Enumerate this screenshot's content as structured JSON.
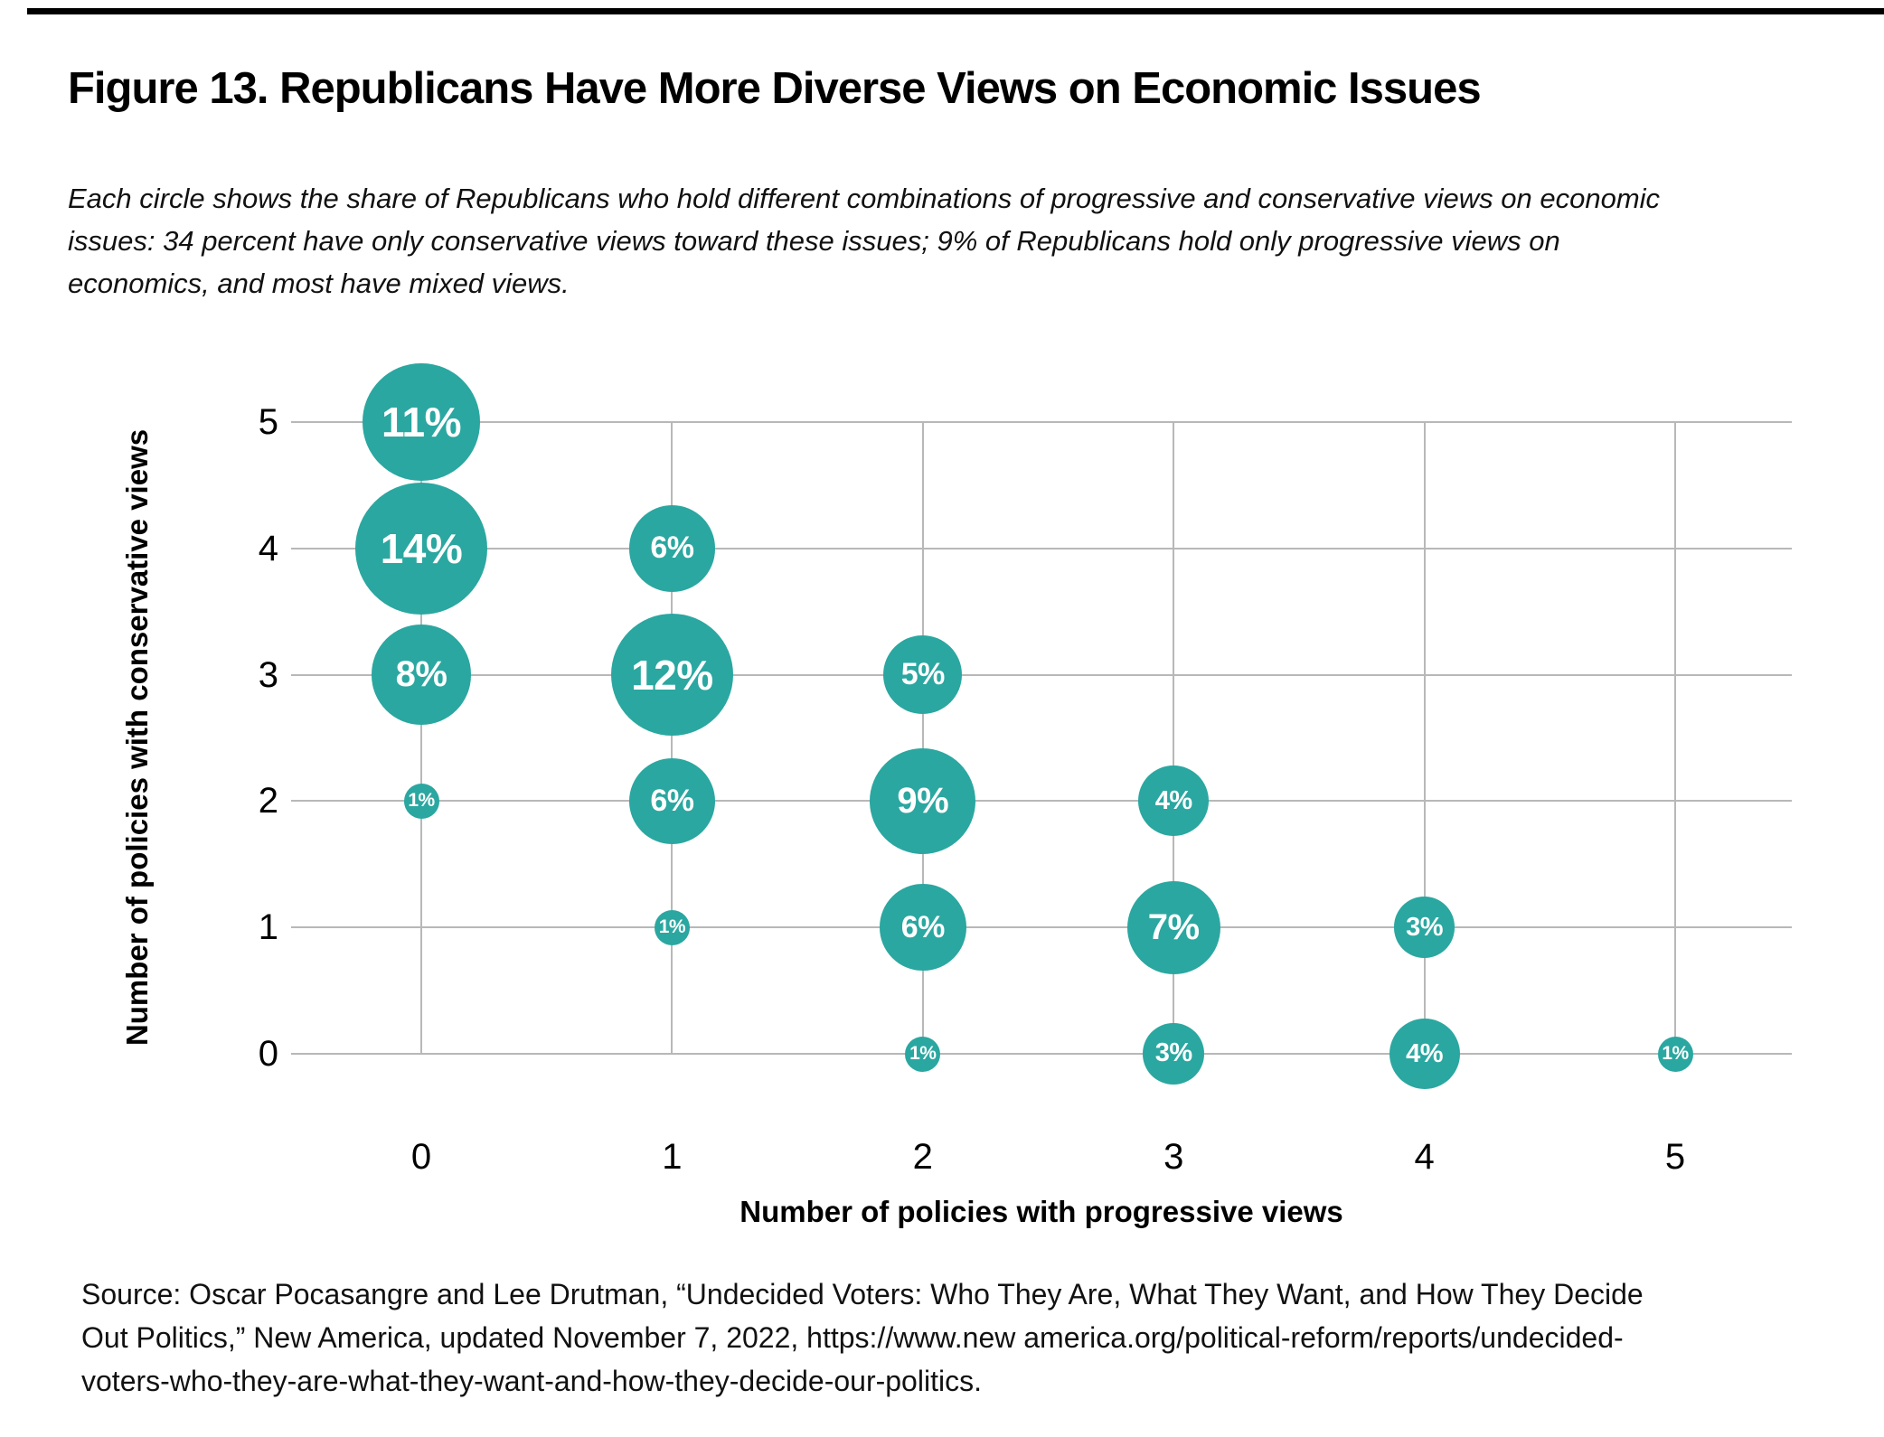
{
  "header": {
    "title": "Figure 13. Republicans Have More Diverse Views on Economic Issues",
    "subtitle_lines": [
      "Each circle shows the share of Republicans who hold different combinations of progressive and conservative views on economic",
      "issues: 34 percent have only conservative views toward these issues; 9% of Republicans hold only progressive views on",
      "economics, and most have mixed views."
    ]
  },
  "chart_data": {
    "type": "scatter",
    "subtype": "bubble",
    "title": "Figure 13. Republicans Have More Diverse Views on Economic Issues",
    "xlabel": "Number of policies with progressive views",
    "ylabel": "Number of policies with conservative views",
    "x_ticks": [
      "0",
      "1",
      "2",
      "3",
      "4",
      "5"
    ],
    "y_ticks": [
      "0",
      "1",
      "2",
      "3",
      "4",
      "5"
    ],
    "xlim": [
      0,
      5
    ],
    "ylim": [
      0,
      5
    ],
    "grid": "on",
    "points": [
      {
        "x": 0,
        "y": 5,
        "value": 11,
        "label": "11%"
      },
      {
        "x": 0,
        "y": 4,
        "value": 14,
        "label": "14%"
      },
      {
        "x": 0,
        "y": 3,
        "value": 8,
        "label": "8%"
      },
      {
        "x": 0,
        "y": 2,
        "value": 1,
        "label": "1%"
      },
      {
        "x": 1,
        "y": 4,
        "value": 6,
        "label": "6%"
      },
      {
        "x": 1,
        "y": 3,
        "value": 12,
        "label": "12%"
      },
      {
        "x": 1,
        "y": 2,
        "value": 6,
        "label": "6%"
      },
      {
        "x": 1,
        "y": 1,
        "value": 1,
        "label": "1%"
      },
      {
        "x": 2,
        "y": 3,
        "value": 5,
        "label": "5%"
      },
      {
        "x": 2,
        "y": 2,
        "value": 9,
        "label": "9%"
      },
      {
        "x": 2,
        "y": 1,
        "value": 6,
        "label": "6%"
      },
      {
        "x": 2,
        "y": 0,
        "value": 1,
        "label": "1%"
      },
      {
        "x": 3,
        "y": 2,
        "value": 4,
        "label": "4%"
      },
      {
        "x": 3,
        "y": 1,
        "value": 7,
        "label": "7%"
      },
      {
        "x": 3,
        "y": 0,
        "value": 3,
        "label": "3%"
      },
      {
        "x": 4,
        "y": 1,
        "value": 3,
        "label": "3%"
      },
      {
        "x": 4,
        "y": 0,
        "value": 4,
        "label": "4%"
      },
      {
        "x": 5,
        "y": 0,
        "value": 1,
        "label": "1%"
      }
    ],
    "colors": {
      "bubble": "#2aa7a0",
      "bubble_label": "#ffffff",
      "grid": "#b8b8b8",
      "text": "#000000",
      "top_rule": "#000000"
    }
  },
  "source": {
    "lines": [
      "Source: Oscar Pocasangre and Lee Drutman, “Undecided Voters: Who They Are, What They Want, and How They Decide",
      "Out Politics,” New America, updated November 7, 2022, https://www.new america.org/political-reform/reports/undecided-",
      "voters-who-they-are-what-they-want-and-how-they-decide-our-politics."
    ]
  }
}
